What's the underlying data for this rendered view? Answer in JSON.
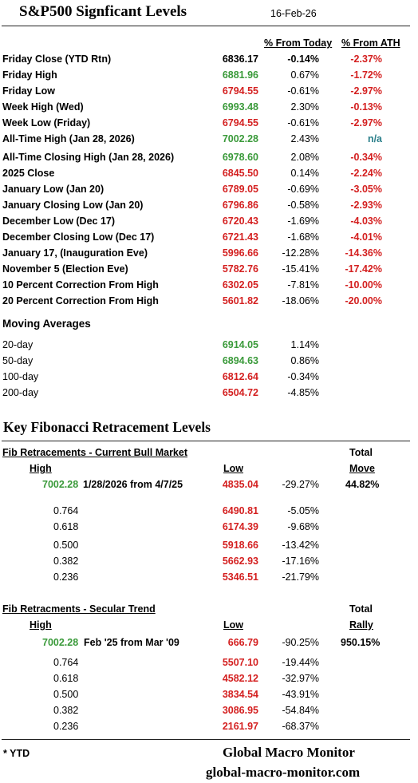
{
  "header": {
    "title": "S&P500 Signficant Levels",
    "date": "16-Feb-26"
  },
  "columns": {
    "from_today": "% From Today",
    "from_ath": "% From ATH"
  },
  "levels": [
    {
      "label": "Friday Close (YTD Rtn)",
      "value": "6836.17",
      "value_color": "black",
      "pct": "-0.14%",
      "pct_bold": true,
      "ath": "-2.37%",
      "ath_color": "red"
    },
    {
      "label": "Friday High",
      "value": "6881.96",
      "value_color": "green",
      "pct": "0.67%",
      "pct_bold": false,
      "ath": "-1.72%",
      "ath_color": "red"
    },
    {
      "label": "Friday Low",
      "value": "6794.55",
      "value_color": "red",
      "pct": "-0.61%",
      "pct_bold": false,
      "ath": "-2.97%",
      "ath_color": "red"
    },
    {
      "label": "Week High (Wed)",
      "value": "6993.48",
      "value_color": "green",
      "pct": "2.30%",
      "pct_bold": false,
      "ath": "-0.13%",
      "ath_color": "red"
    },
    {
      "label": "Week Low (Friday)",
      "value": "6794.55",
      "value_color": "red",
      "pct": "-0.61%",
      "pct_bold": false,
      "ath": "-2.97%",
      "ath_color": "red"
    },
    {
      "label": "All-Time High (Jan 28, 2026)",
      "value": "7002.28",
      "value_color": "green",
      "pct": "2.43%",
      "pct_bold": false,
      "ath": "n/a",
      "ath_color": "teal"
    },
    {
      "label": "All-Time Closing High (Jan 28, 2026)",
      "value": "6978.60",
      "value_color": "green",
      "pct": "2.08%",
      "pct_bold": false,
      "ath": "-0.34%",
      "ath_color": "red"
    },
    {
      "label": "2025 Close",
      "value": "6845.50",
      "value_color": "red",
      "pct": "0.14%",
      "pct_bold": false,
      "ath": "-2.24%",
      "ath_color": "red"
    },
    {
      "label": "January Low (Jan 20)",
      "value": "6789.05",
      "value_color": "red",
      "pct": "-0.69%",
      "pct_bold": false,
      "ath": "-3.05%",
      "ath_color": "red"
    },
    {
      "label": "January Closing Low (Jan 20)",
      "value": "6796.86",
      "value_color": "red",
      "pct": "-0.58%",
      "pct_bold": false,
      "ath": "-2.93%",
      "ath_color": "red"
    },
    {
      "label": "December Low (Dec 17)",
      "value": "6720.43",
      "value_color": "red",
      "pct": "-1.69%",
      "pct_bold": false,
      "ath": "-4.03%",
      "ath_color": "red"
    },
    {
      "label": "December Closing Low (Dec 17)",
      "value": "6721.43",
      "value_color": "red",
      "pct": "-1.68%",
      "pct_bold": false,
      "ath": "-4.01%",
      "ath_color": "red"
    },
    {
      "label": "January 17, (Inauguration Eve)",
      "value": "5996.66",
      "value_color": "red",
      "pct": "-12.28%",
      "pct_bold": false,
      "ath": "-14.36%",
      "ath_color": "red"
    },
    {
      "label": "November 5 (Election Eve)",
      "value": "5782.76",
      "value_color": "red",
      "pct": "-15.41%",
      "pct_bold": false,
      "ath": "-17.42%",
      "ath_color": "red"
    },
    {
      "label": "10 Percent Correction From High",
      "value": "6302.05",
      "value_color": "red",
      "pct": "-7.81%",
      "pct_bold": false,
      "ath": "-10.00%",
      "ath_color": "red"
    },
    {
      "label": "20 Percent Correction From High",
      "value": "5601.82",
      "value_color": "red",
      "pct": "-18.06%",
      "pct_bold": false,
      "ath": "-20.00%",
      "ath_color": "red"
    }
  ],
  "moving_averages": {
    "title": "Moving Averages",
    "rows": [
      {
        "label": "20-day",
        "value": "6914.05",
        "value_color": "green",
        "pct": "1.14%"
      },
      {
        "label": "50-day",
        "value": "6894.63",
        "value_color": "green",
        "pct": "0.86%"
      },
      {
        "label": "100-day",
        "value": "6812.64",
        "value_color": "red",
        "pct": "-0.34%"
      },
      {
        "label": "200-day",
        "value": "6504.72",
        "value_color": "red",
        "pct": "-4.85%"
      }
    ]
  },
  "fib_title": "Key Fibonacci Retracement Levels",
  "fib_bull": {
    "title": "Fib Retracements - Current Bull Market",
    "high_label": "High",
    "low_label": "Low",
    "total_label": "Total",
    "move_label": "Move",
    "high": "7002.28",
    "range": "1/28/2026 from 4/7/25",
    "low": "4835.04",
    "low_pct": "-29.27%",
    "total": "44.82%",
    "levels": [
      {
        "ratio": "0.764",
        "value": "6490.81",
        "pct": "-5.05%"
      },
      {
        "ratio": "0.618",
        "value": "6174.39",
        "pct": "-9.68%"
      },
      {
        "ratio": "0.500",
        "value": "5918.66",
        "pct": "-13.42%"
      },
      {
        "ratio": "0.382",
        "value": "5662.93",
        "pct": "-17.16%"
      },
      {
        "ratio": "0.236",
        "value": "5346.51",
        "pct": "-21.79%"
      }
    ]
  },
  "fib_secular": {
    "title": "Fib Retracments - Secular Trend",
    "high_label": "High",
    "low_label": "Low",
    "total_label": "Total",
    "move_label": "Rally",
    "high": "7002.28",
    "range": "Feb '25 from Mar '09",
    "low": "666.79",
    "low_pct": "-90.25%",
    "total": "950.15%",
    "levels": [
      {
        "ratio": "0.764",
        "value": "5507.10",
        "pct": "-19.44%"
      },
      {
        "ratio": "0.618",
        "value": "4582.12",
        "pct": "-32.97%"
      },
      {
        "ratio": "0.500",
        "value": "3834.54",
        "pct": "-43.91%"
      },
      {
        "ratio": "0.382",
        "value": "3086.95",
        "pct": "-54.84%"
      },
      {
        "ratio": "0.236",
        "value": "2161.97",
        "pct": "-68.37%"
      }
    ]
  },
  "footer": {
    "note": "* YTD",
    "brand": "Global Macro Monitor",
    "site": "global-macro-monitor.com"
  },
  "colors": {
    "green": "#3a9a3a",
    "red": "#d42020",
    "teal": "#2a7f8a"
  }
}
